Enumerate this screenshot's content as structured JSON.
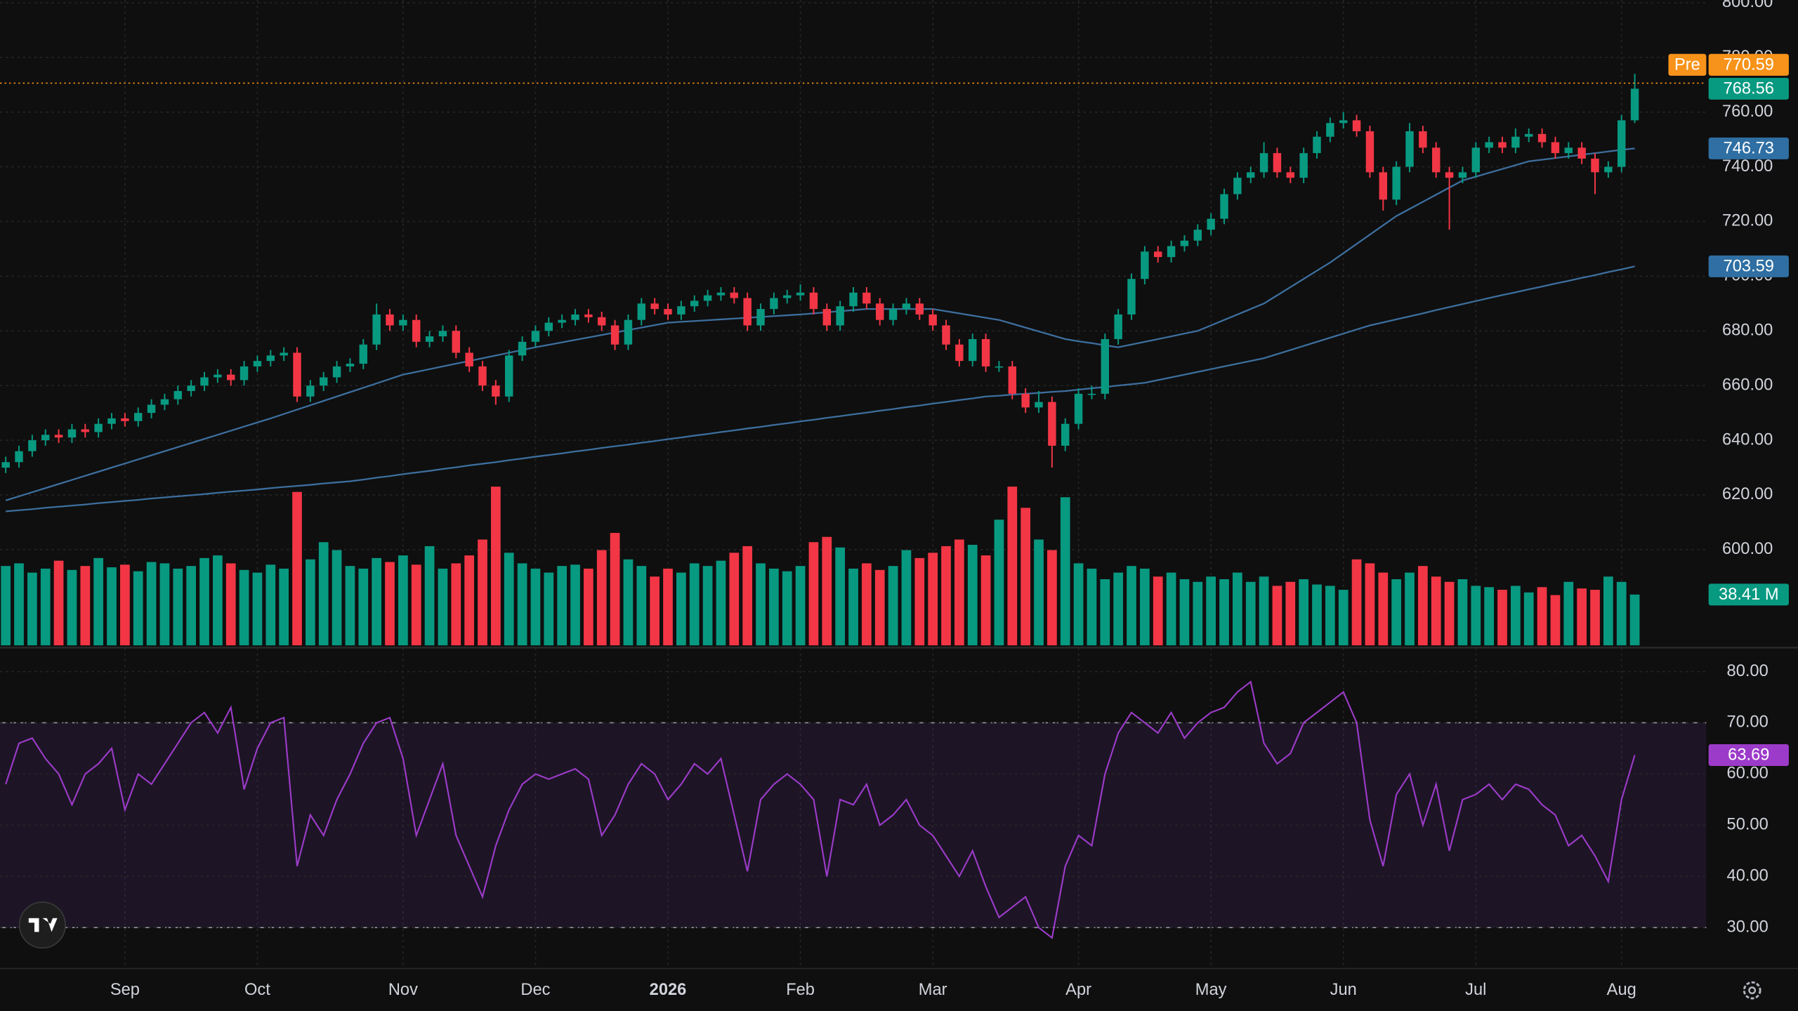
{
  "chart_data": [
    {
      "type": "candlestick",
      "categories": [
        null,
        null,
        null,
        null,
        null,
        null,
        null,
        null,
        null,
        "Sep",
        null,
        null,
        null,
        null,
        null,
        null,
        null,
        null,
        null,
        "Oct",
        null,
        null,
        null,
        null,
        null,
        null,
        null,
        null,
        null,
        null,
        "Nov",
        null,
        null,
        null,
        null,
        null,
        null,
        null,
        null,
        null,
        "Dec",
        null,
        null,
        null,
        null,
        null,
        null,
        null,
        null,
        null,
        "2026",
        null,
        null,
        null,
        null,
        null,
        null,
        null,
        null,
        null,
        "Feb",
        null,
        null,
        null,
        null,
        null,
        null,
        null,
        null,
        null,
        "Mar",
        null,
        null,
        null,
        null,
        null,
        null,
        null,
        null,
        null,
        null,
        "Apr",
        null,
        null,
        null,
        null,
        null,
        null,
        null,
        null,
        null,
        "May",
        null,
        null,
        null,
        null,
        null,
        null,
        null,
        null,
        null,
        "Jun",
        null,
        null,
        null,
        null,
        null,
        null,
        null,
        null,
        null,
        "Jul",
        null,
        null,
        null,
        null,
        null,
        null,
        null,
        null,
        null,
        null,
        "Aug",
        null
      ],
      "open": [
        630,
        632,
        636,
        640,
        642,
        641,
        644,
        643,
        646,
        648,
        647,
        650,
        653,
        655,
        658,
        660,
        663,
        664,
        662,
        667,
        669,
        671,
        672,
        656,
        660,
        663,
        667,
        668,
        675,
        686,
        682,
        684,
        676,
        678,
        680,
        672,
        667,
        660,
        656,
        671,
        676,
        680,
        683,
        684,
        686,
        685,
        682,
        675,
        684,
        690,
        688,
        686,
        689,
        691,
        693,
        694,
        692,
        682,
        688,
        692,
        693,
        694,
        688,
        682,
        689,
        694,
        690,
        684,
        688,
        690,
        686,
        682,
        675,
        669,
        677,
        667,
        667,
        657,
        652,
        654,
        638,
        646,
        657,
        657,
        677,
        686,
        699,
        709,
        707,
        711,
        713,
        717,
        721,
        730,
        736,
        738,
        745,
        738,
        736,
        745,
        751,
        756,
        757,
        753,
        738,
        728,
        740,
        753,
        747,
        738,
        736,
        738,
        747,
        749,
        747,
        751,
        752,
        749,
        745,
        747,
        743,
        738,
        740,
        757
      ],
      "high": [
        634,
        638,
        642,
        644,
        644,
        646,
        646,
        648,
        650,
        650,
        652,
        655,
        657,
        660,
        662,
        665,
        666,
        666,
        669,
        671,
        673,
        674,
        674,
        662,
        665,
        669,
        670,
        677,
        690,
        688,
        686,
        686,
        680,
        682,
        682,
        674,
        669,
        662,
        673,
        678,
        682,
        685,
        686,
        688,
        688,
        687,
        684,
        686,
        692,
        692,
        690,
        691,
        693,
        695,
        696,
        696,
        694,
        690,
        694,
        695,
        697,
        696,
        690,
        691,
        696,
        696,
        692,
        690,
        692,
        692,
        688,
        684,
        677,
        679,
        679,
        669,
        669,
        659,
        658,
        656,
        648,
        659,
        660,
        679,
        688,
        701,
        711,
        711,
        713,
        715,
        719,
        723,
        732,
        738,
        740,
        749,
        747,
        740,
        747,
        753,
        758,
        760,
        759,
        755,
        740,
        742,
        756,
        755,
        749,
        740,
        740,
        749,
        751,
        751,
        754,
        754,
        754,
        751,
        749,
        749,
        745,
        742,
        759,
        774
      ],
      "low": [
        628,
        630,
        634,
        638,
        639,
        639,
        641,
        641,
        644,
        645,
        645,
        648,
        651,
        653,
        656,
        658,
        661,
        660,
        660,
        665,
        667,
        669,
        654,
        654,
        658,
        661,
        665,
        666,
        673,
        680,
        680,
        674,
        674,
        676,
        670,
        665,
        658,
        653,
        654,
        669,
        674,
        678,
        681,
        682,
        683,
        680,
        673,
        673,
        682,
        686,
        684,
        684,
        687,
        689,
        691,
        690,
        680,
        680,
        686,
        690,
        691,
        686,
        680,
        680,
        687,
        688,
        682,
        682,
        686,
        684,
        680,
        673,
        667,
        667,
        665,
        665,
        655,
        650,
        650,
        630,
        636,
        644,
        655,
        655,
        675,
        684,
        697,
        705,
        705,
        709,
        711,
        715,
        719,
        728,
        734,
        736,
        736,
        734,
        734,
        743,
        749,
        754,
        751,
        736,
        724,
        726,
        738,
        745,
        736,
        717,
        734,
        736,
        745,
        745,
        745,
        749,
        747,
        743,
        743,
        741,
        730,
        736,
        738,
        756
      ],
      "close": [
        632,
        636,
        640,
        642,
        641,
        644,
        643,
        646,
        648,
        647,
        650,
        653,
        655,
        658,
        660,
        663,
        664,
        662,
        667,
        669,
        671,
        672,
        656,
        660,
        663,
        667,
        668,
        675,
        686,
        682,
        684,
        676,
        678,
        680,
        672,
        667,
        660,
        656,
        671,
        676,
        680,
        683,
        684,
        686,
        685,
        682,
        675,
        684,
        690,
        688,
        686,
        689,
        691,
        693,
        694,
        692,
        682,
        688,
        692,
        693,
        694,
        688,
        682,
        689,
        694,
        690,
        684,
        688,
        690,
        686,
        682,
        675,
        669,
        677,
        667,
        667,
        657,
        652,
        654,
        638,
        646,
        657,
        657,
        677,
        686,
        699,
        709,
        707,
        711,
        713,
        717,
        721,
        730,
        736,
        738,
        745,
        738,
        736,
        745,
        751,
        756,
        757,
        753,
        738,
        728,
        740,
        753,
        747,
        738,
        736,
        738,
        747,
        749,
        747,
        751,
        752,
        749,
        745,
        747,
        743,
        738,
        740,
        757,
        768.56
      ],
      "up_color": "#089981",
      "down_color": "#f23645",
      "series": [
        {
          "color": "#3d6f9e",
          "values": [
            618,
            619.5,
            621,
            622.5,
            624,
            625.5,
            627,
            628.5,
            630,
            631.5,
            633,
            634.5,
            636,
            637.5,
            639,
            640.5,
            642,
            643.5,
            645,
            646.5,
            648,
            649.6,
            651.2,
            652.8,
            654.4,
            656,
            657.6,
            659.2,
            660.8,
            662.4,
            664,
            665,
            666,
            667,
            668,
            669,
            670,
            671,
            672,
            673,
            674,
            674.9,
            675.8,
            676.7,
            677.6,
            678.5,
            679.4,
            680.3,
            681.2,
            682.1,
            683,
            683.3,
            683.6,
            683.9,
            684.2,
            684.5,
            684.8,
            685.1,
            685.4,
            685.7,
            686,
            686.4,
            686.8,
            687.2,
            687.6,
            688,
            688,
            688,
            688,
            688,
            688,
            687.2,
            686.4,
            685.6,
            684.8,
            684,
            682.6,
            681.2,
            679.8,
            678.4,
            677,
            676.2,
            675.5,
            674.7,
            674,
            675,
            676,
            677,
            678,
            679,
            680,
            682,
            684,
            686,
            688,
            690,
            693,
            696,
            699,
            702,
            705,
            708.4,
            711.8,
            715.2,
            718.6,
            722,
            724.6,
            727.2,
            729.8,
            732.4,
            735,
            736.4,
            737.8,
            739.2,
            740.6,
            742,
            742.6,
            743.2,
            743.8,
            744.4,
            745,
            745.6,
            746.2,
            746.73
          ]
        },
        {
          "color": "#3d6f9e",
          "values": [
            614,
            614.4,
            614.8,
            615.3,
            615.7,
            616.1,
            616.5,
            617,
            617.4,
            617.8,
            618.2,
            618.7,
            619.1,
            619.5,
            619.9,
            620.3,
            620.8,
            621.2,
            621.6,
            622,
            622.5,
            622.9,
            623.3,
            623.7,
            624.2,
            624.6,
            625,
            625.6,
            626.3,
            626.9,
            627.6,
            628.2,
            628.8,
            629.5,
            630.1,
            630.8,
            631.4,
            632,
            632.7,
            633.3,
            634,
            634.6,
            635.2,
            635.9,
            636.5,
            637.2,
            637.8,
            638.4,
            639.1,
            639.7,
            640.4,
            641,
            641.7,
            642.3,
            643,
            643.6,
            644.3,
            644.9,
            645.6,
            646.2,
            646.9,
            647.5,
            648.2,
            648.8,
            649.5,
            650.1,
            650.8,
            651.4,
            652.1,
            652.7,
            653.4,
            654,
            654.7,
            655.3,
            656,
            656.3,
            656.7,
            657,
            657.3,
            657.7,
            658,
            658.5,
            659,
            659.5,
            660,
            660.5,
            661,
            662,
            663,
            664,
            665,
            666,
            667,
            668,
            669,
            670,
            671.5,
            673,
            674.5,
            676,
            677.5,
            679,
            680.5,
            682,
            683.1,
            684.2,
            685.3,
            686.4,
            687.6,
            688.7,
            689.8,
            690.9,
            692,
            693.1,
            694.1,
            695.2,
            696.2,
            697.3,
            698.3,
            699.4,
            700.4,
            701.5,
            702.5,
            703.59
          ]
        }
      ],
      "premarket": {
        "label": "Pre",
        "value": 770.59,
        "color": "#f7931a"
      },
      "ylim": [
        565,
        801
      ],
      "yticks": [
        {
          "value": 600,
          "label": "600.00"
        },
        {
          "value": 620,
          "label": "620.00"
        },
        {
          "value": 640,
          "label": "640.00"
        },
        {
          "value": 660,
          "label": "660.00"
        },
        {
          "value": 680,
          "label": "680.00"
        },
        {
          "value": 700,
          "label": "700.00"
        },
        {
          "value": 720,
          "label": "720.00"
        },
        {
          "value": 740,
          "label": "740.00"
        },
        {
          "value": 760,
          "label": "760.00"
        },
        {
          "value": 780,
          "label": "780.00"
        },
        {
          "value": 800,
          "label": "800.00"
        }
      ],
      "grid": true
    },
    {
      "type": "bar",
      "values": [
        60,
        62,
        55,
        58,
        64,
        57,
        60,
        66,
        59,
        61,
        56,
        63,
        62,
        58,
        60,
        66,
        68,
        62,
        57,
        55,
        61,
        58,
        116,
        65,
        78,
        72,
        60,
        58,
        66,
        63,
        68,
        61,
        75,
        58,
        62,
        68,
        80,
        120,
        70,
        62,
        58,
        55,
        60,
        61,
        58,
        72,
        85,
        65,
        60,
        52,
        58,
        55,
        62,
        60,
        64,
        70,
        75,
        62,
        58,
        56,
        60,
        78,
        82,
        74,
        58,
        62,
        57,
        60,
        72,
        66,
        70,
        75,
        80,
        76,
        68,
        95,
        120,
        104,
        80,
        72,
        112,
        62,
        58,
        50,
        55,
        60,
        58,
        52,
        55,
        50,
        48,
        52,
        50,
        55,
        48,
        52,
        45,
        48,
        50,
        46,
        45,
        42,
        65,
        62,
        55,
        50,
        55,
        60,
        52,
        48,
        50,
        45,
        44,
        42,
        45,
        40,
        44,
        38,
        48,
        43,
        42,
        52,
        48,
        38.41
      ],
      "last_label": "38.41 M",
      "up_color": "#089981",
      "down_color": "#f23645",
      "ylim": [
        0,
        130
      ]
    },
    {
      "type": "line",
      "values": [
        58,
        66,
        67,
        63,
        60,
        54,
        60,
        62,
        65,
        53,
        60,
        58,
        62,
        66,
        70,
        72,
        68,
        73,
        57,
        65,
        70,
        71,
        42,
        52,
        48,
        55,
        60,
        66,
        70,
        71,
        63,
        48,
        55,
        62,
        48,
        42,
        36,
        46,
        53,
        58,
        60,
        59,
        60,
        61,
        59,
        48,
        52,
        58,
        62,
        60,
        55,
        58,
        62,
        60,
        63,
        52,
        41,
        55,
        58,
        60,
        58,
        55,
        40,
        55,
        54,
        58,
        50,
        52,
        55,
        50,
        48,
        44,
        40,
        45,
        38,
        32,
        34,
        36,
        30,
        28,
        42,
        48,
        46,
        60,
        68,
        72,
        70,
        68,
        72,
        67,
        70,
        72,
        73,
        76,
        78,
        66,
        62,
        64,
        70,
        72,
        74,
        76,
        70,
        51,
        42,
        56,
        60,
        50,
        58,
        45,
        55,
        56,
        58,
        55,
        58,
        57,
        54,
        52,
        46,
        48,
        44,
        39,
        55,
        63.69
      ],
      "color": "#9c3bc9",
      "bands": [
        30,
        70
      ],
      "ylim": [
        22,
        84
      ],
      "yticks": [
        {
          "value": 30,
          "label": "30.00"
        },
        {
          "value": 40,
          "label": "40.00"
        },
        {
          "value": 50,
          "label": "50.00"
        },
        {
          "value": 60,
          "label": "60.00"
        },
        {
          "value": 70,
          "label": "70.00"
        },
        {
          "value": 80,
          "label": "80.00"
        }
      ],
      "grid": true
    }
  ]
}
